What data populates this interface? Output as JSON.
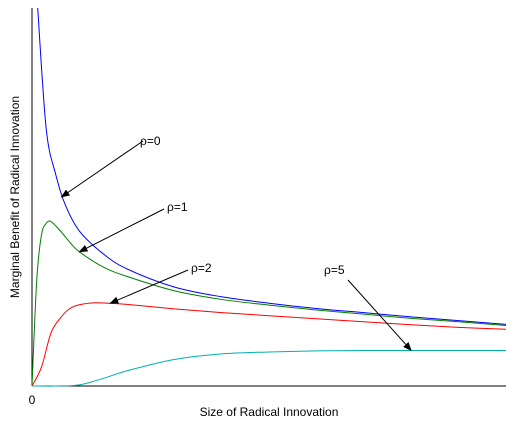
{
  "chart_data": {
    "type": "line",
    "title": "",
    "xlabel": "Size of Radical Innovation",
    "ylabel": "Marginal Benefit of Radical Innovation",
    "x_tick_labels": [
      "0"
    ],
    "xlim": [
      0,
      1
    ],
    "ylim": [
      0,
      1
    ],
    "axis_ticks_numeric": false,
    "grid": false,
    "series": [
      {
        "name": "ρ=0",
        "color": "#0000ff",
        "x": [
          0.012,
          0.03,
          0.05,
          0.07,
          0.1,
          0.15,
          0.2,
          0.3,
          0.4,
          0.5,
          0.6,
          0.7,
          0.8,
          0.9,
          1.0
        ],
        "y": [
          1.0,
          0.68,
          0.56,
          0.48,
          0.41,
          0.35,
          0.31,
          0.262,
          0.236,
          0.219,
          0.205,
          0.194,
          0.183,
          0.173,
          0.163
        ]
      },
      {
        "name": "ρ=1",
        "color": "#008000",
        "x": [
          0.0,
          0.01,
          0.02,
          0.03,
          0.04,
          0.06,
          0.08,
          0.1,
          0.15,
          0.2,
          0.3,
          0.4,
          0.5,
          0.6,
          0.7,
          0.8,
          0.9,
          1.0
        ],
        "y": [
          0.0,
          0.28,
          0.4,
          0.43,
          0.435,
          0.41,
          0.38,
          0.355,
          0.315,
          0.29,
          0.252,
          0.229,
          0.214,
          0.201,
          0.19,
          0.179,
          0.17,
          0.16
        ]
      },
      {
        "name": "ρ=2",
        "color": "#ff0000",
        "x": [
          0.0,
          0.02,
          0.04,
          0.06,
          0.08,
          0.1,
          0.13,
          0.16,
          0.2,
          0.3,
          0.4,
          0.5,
          0.6,
          0.7,
          0.8,
          0.9,
          1.0
        ],
        "y": [
          0.0,
          0.05,
          0.14,
          0.18,
          0.205,
          0.215,
          0.22,
          0.219,
          0.216,
          0.204,
          0.194,
          0.186,
          0.178,
          0.17,
          0.162,
          0.155,
          0.15
        ]
      },
      {
        "name": "ρ=5",
        "color": "#00b0b0",
        "x": [
          0.0,
          0.05,
          0.1,
          0.15,
          0.2,
          0.3,
          0.4,
          0.5,
          0.6,
          0.7,
          0.8,
          0.9,
          1.0
        ],
        "y": [
          0.0,
          0.0,
          0.003,
          0.02,
          0.04,
          0.07,
          0.085,
          0.09,
          0.093,
          0.094,
          0.094,
          0.094,
          0.094
        ]
      }
    ],
    "annotations": [
      {
        "text": "ρ=0",
        "series": "ρ=0",
        "point": [
          0.062,
          0.5
        ]
      },
      {
        "text": "ρ=1",
        "series": "ρ=1",
        "point": [
          0.1,
          0.355
        ]
      },
      {
        "text": "ρ=2",
        "series": "ρ=2",
        "point": [
          0.165,
          0.219
        ]
      },
      {
        "text": "ρ=5",
        "series": "ρ=5",
        "point": [
          0.8,
          0.094
        ]
      }
    ]
  }
}
